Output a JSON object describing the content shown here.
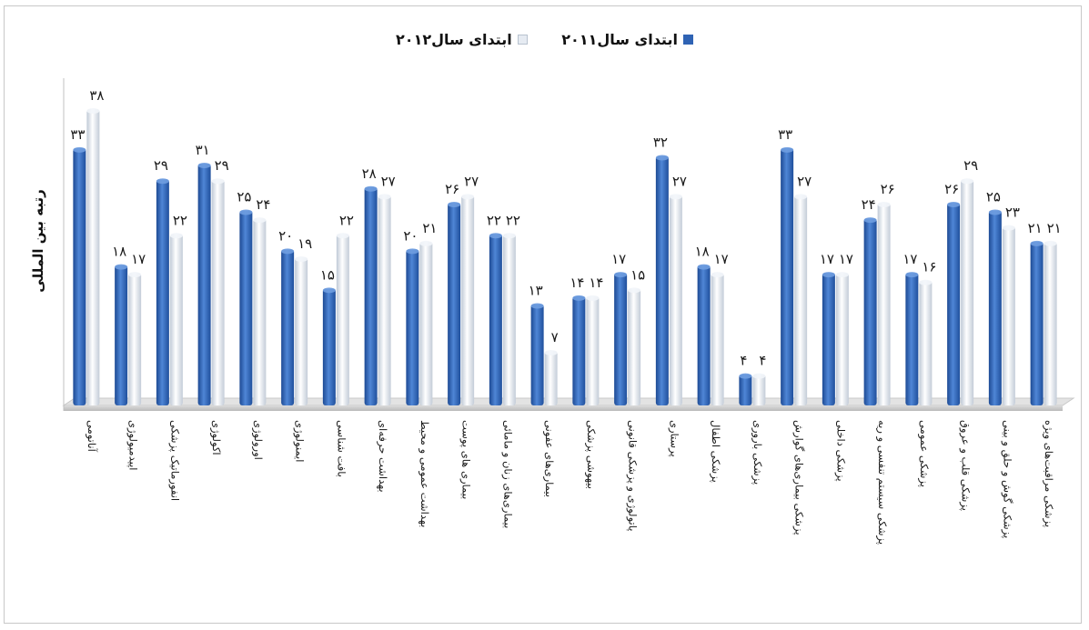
{
  "chart_data": {
    "type": "bar",
    "ylabel": "رتبه بین المللی",
    "ylim": [
      0,
      40
    ],
    "grid": false,
    "legend_position": "top",
    "categories": [
      "آناتومی",
      "اپیدمیولوژی",
      "انفورماتیک پزشکی",
      "اکولوژی",
      "اورولوژی",
      "ایمنولوژی",
      "بافت شناسی",
      "بهداشت حرفه‌ای",
      "بهداشت عمومی و محیط",
      "بیماری های پوست",
      "بیماری‌های زنان و مامائی",
      "بیماری‌های عفونی",
      "بیهوشی پزشکی",
      "پاتولوژی و پزشکی قانونی",
      "پرستاری",
      "پزشکی اطفال",
      "پزشکی باروری",
      "پزشکی بیماری‌های گوارش",
      "پزشکی داخلی",
      "پزشکی سیستم تنفسی و ریه",
      "پزشکی عمومی",
      "پزشکی قلب و عروق",
      "پزشکی گوش و حلق و بینی",
      "پزشکی مراقبت‌های ویژه"
    ],
    "series": [
      {
        "name": "ابتدای سال۲۰۱۱",
        "color": "#2f63b4",
        "values": [
          33,
          18,
          29,
          31,
          25,
          20,
          15,
          28,
          20,
          26,
          22,
          13,
          14,
          17,
          32,
          18,
          4,
          33,
          17,
          24,
          17,
          26,
          25,
          21
        ],
        "labels": [
          "۳۳",
          "۱۸",
          "۲۹",
          "۳۱",
          "۲۵",
          "۲۰",
          "۱۵",
          "۲۸",
          "۲۰",
          "۲۶",
          "۲۲",
          "۱۳",
          "۱۴",
          "۱۷",
          "۳۲",
          "۱۸",
          "۴",
          "۳۳",
          "۱۷",
          "۲۴",
          "۱۷",
          "۲۶",
          "۲۵",
          "۲۱"
        ]
      },
      {
        "name": "ابتدای سال۲۰۱۲",
        "color": "#dfe6ef",
        "values": [
          38,
          17,
          22,
          29,
          24,
          19,
          22,
          27,
          21,
          27,
          22,
          7,
          14,
          15,
          27,
          17,
          4,
          27,
          17,
          26,
          16,
          29,
          23,
          21
        ],
        "labels": [
          "۳۸",
          "۱۷",
          "۲۲",
          "۲۹",
          "۲۴",
          "۱۹",
          "۲۲",
          "۲۷",
          "۲۱",
          "۲۷",
          "۲۲",
          "۷",
          "۱۴",
          "۱۵",
          "۲۷",
          "۱۷",
          "۴",
          "۲۷",
          "۱۷",
          "۲۶",
          "۱۶",
          "۲۹",
          "۲۳",
          "۲۱"
        ]
      }
    ]
  }
}
